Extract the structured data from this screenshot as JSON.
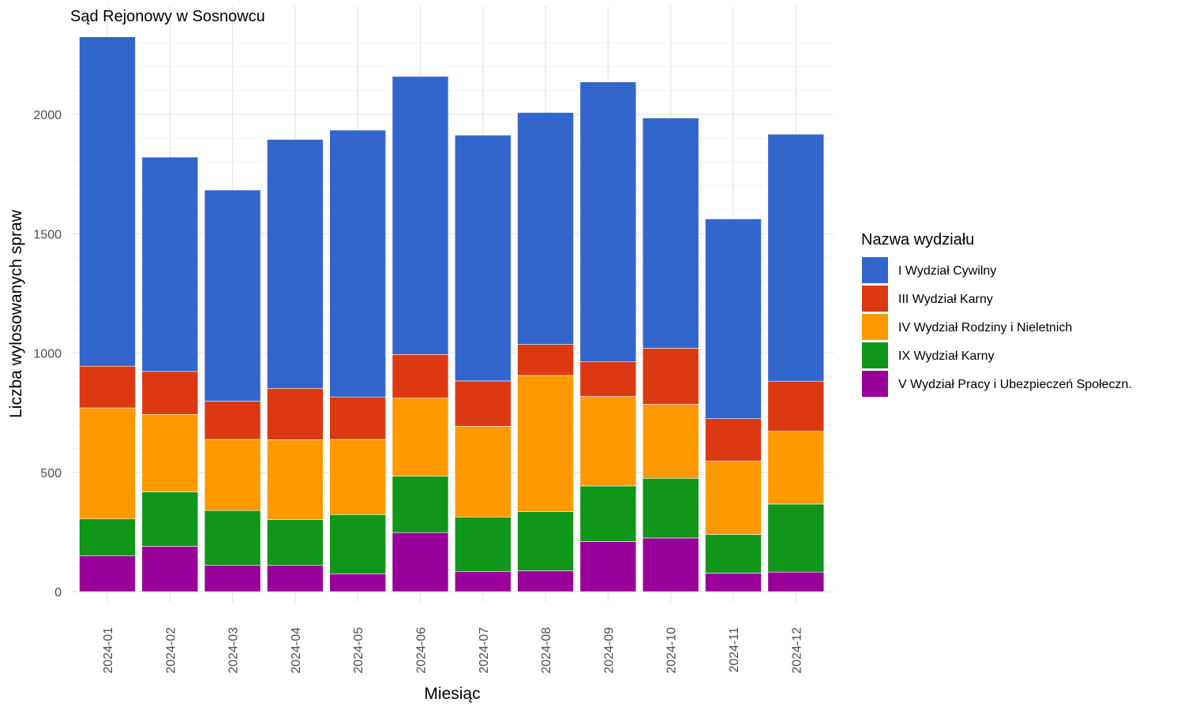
{
  "chart_data": {
    "type": "bar",
    "stacked": true,
    "title": "Sąd Rejonowy w Sosnowcu",
    "xlabel": "Miesiąc",
    "ylabel": "Liczba wylosowanych spraw",
    "ylim": [
      0,
      2400
    ],
    "yticks": [
      0,
      500,
      1000,
      1500,
      2000
    ],
    "grid": true,
    "legend_position": "right",
    "legend_title": "Nazwa wydziału",
    "categories": [
      "2024-01",
      "2024-02",
      "2024-03",
      "2024-04",
      "2024-05",
      "2024-06",
      "2024-07",
      "2024-08",
      "2024-09",
      "2024-10",
      "2024-11",
      "2024-12"
    ],
    "series": [
      {
        "name": "V Wydział Pracy i Ubezpieczeń Społeczn.",
        "color": "#990099",
        "values": [
          150,
          190,
          110,
          110,
          75,
          248,
          85,
          88,
          210,
          225,
          78,
          82
        ]
      },
      {
        "name": "IX Wydział Karny",
        "color": "#109618",
        "values": [
          155,
          228,
          230,
          192,
          248,
          236,
          228,
          248,
          233,
          250,
          162,
          285
        ]
      },
      {
        "name": "IV Wydział Rodziny i Nieletnich",
        "color": "#FF9900",
        "values": [
          465,
          325,
          298,
          335,
          315,
          327,
          380,
          570,
          375,
          310,
          307,
          305
        ]
      },
      {
        "name": "III Wydział Karny",
        "color": "#DC3912",
        "values": [
          175,
          180,
          160,
          215,
          178,
          183,
          190,
          130,
          145,
          235,
          178,
          210
        ]
      },
      {
        "name": "I Wydział Cywilny",
        "color": "#3366CC",
        "values": [
          1380,
          898,
          885,
          1043,
          1118,
          1165,
          1030,
          972,
          1173,
          965,
          837,
          1035
        ]
      }
    ],
    "legend_order": [
      "I Wydział Cywilny",
      "III Wydział Karny",
      "IV Wydział Rodziny i Nieletnich",
      "IX Wydział Karny",
      "V Wydział Pracy i Ubezpieczeń Społeczn."
    ]
  }
}
